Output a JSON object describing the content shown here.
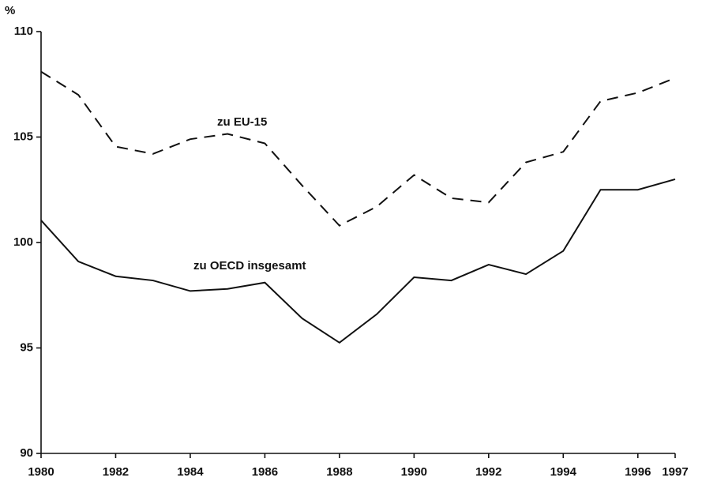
{
  "chart_data": {
    "type": "line",
    "y_label": "%",
    "x": [
      1980,
      1981,
      1982,
      1983,
      1984,
      1985,
      1986,
      1987,
      1988,
      1989,
      1990,
      1991,
      1992,
      1993,
      1994,
      1995,
      1996,
      1997
    ],
    "series": [
      {
        "name": "zu EU-15",
        "color": "#111111",
        "dash": true,
        "values": [
          108.1,
          107.0,
          104.55,
          104.2,
          104.9,
          105.15,
          104.7,
          102.7,
          100.8,
          101.7,
          103.2,
          102.1,
          101.9,
          103.8,
          104.3,
          106.7,
          107.1,
          107.8
        ]
      },
      {
        "name": "zu OECD insgesamt",
        "color": "#111111",
        "dash": false,
        "values": [
          101.05,
          99.1,
          98.4,
          98.2,
          97.7,
          97.8,
          98.1,
          96.4,
          95.25,
          96.6,
          98.35,
          98.2,
          98.95,
          98.5,
          99.6,
          102.5,
          102.5,
          103.0
        ]
      }
    ],
    "xlim": [
      1980,
      1997
    ],
    "xticks": [
      1980,
      1982,
      1984,
      1986,
      1988,
      1990,
      1992,
      1994,
      1996,
      1997
    ],
    "ylim": [
      90,
      110
    ],
    "yticks": [
      90,
      95,
      100,
      105,
      110
    ],
    "grid": false
  }
}
